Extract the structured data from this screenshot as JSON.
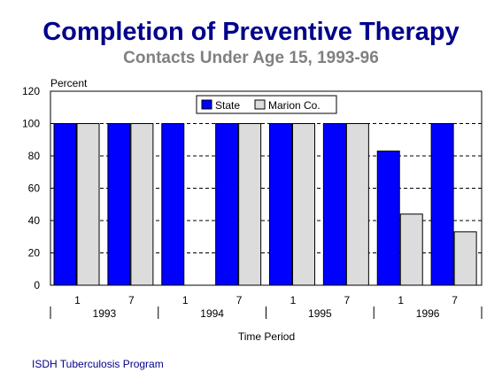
{
  "chart_data": {
    "type": "bar",
    "title": "Completion of Preventive Therapy",
    "subtitle": "Contacts Under Age 15, 1993-96",
    "ylabel": "Percent",
    "xlabel": "Time Period",
    "ylim": [
      0,
      120
    ],
    "yticks": [
      0,
      20,
      40,
      60,
      80,
      100,
      120
    ],
    "categories": [
      "1",
      "7",
      "1",
      "7",
      "1",
      "7",
      "1",
      "7"
    ],
    "groups": [
      {
        "label": "1993",
        "count": 2
      },
      {
        "label": "1994",
        "count": 2
      },
      {
        "label": "1995",
        "count": 2
      },
      {
        "label": "1996",
        "count": 2
      }
    ],
    "series": [
      {
        "name": "State",
        "color": "#0000ff",
        "values": [
          100,
          100,
          100,
          100,
          100,
          100,
          83,
          100
        ]
      },
      {
        "name": "Marion Co.",
        "color": "#dcdcdc",
        "values": [
          100,
          100,
          0,
          100,
          100,
          100,
          44,
          33
        ]
      }
    ],
    "grid": "dashed horizontal",
    "legend_position": "top-center"
  },
  "footer": "ISDH Tuberculosis Program"
}
